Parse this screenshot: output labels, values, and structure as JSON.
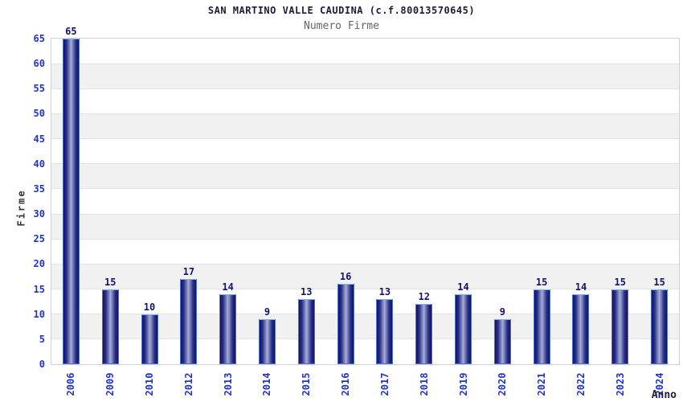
{
  "chart_data": {
    "type": "bar",
    "title": "SAN MARTINO VALLE CAUDINA (c.f.80013570645)",
    "subtitle": "Numero Firme",
    "xlabel": "Anno",
    "ylabel": "Firme",
    "categories": [
      "2006",
      "2009",
      "2010",
      "2012",
      "2013",
      "2014",
      "2015",
      "2016",
      "2017",
      "2018",
      "2019",
      "2020",
      "2021",
      "2022",
      "2023",
      "2024"
    ],
    "values": [
      65,
      15,
      10,
      17,
      14,
      9,
      13,
      16,
      13,
      12,
      14,
      9,
      15,
      14,
      15,
      15
    ],
    "ylim": [
      0,
      65
    ],
    "ytick_step": 5,
    "yticks": [
      0,
      5,
      10,
      15,
      20,
      25,
      30,
      35,
      40,
      45,
      50,
      55,
      60,
      65
    ],
    "grid": true,
    "legend": "none",
    "band_fill_ranges": "alternating 5-unit stripes starting gray at 5-10",
    "colors": {
      "bar_edge": "#121264",
      "bar_center": "#a6aeda",
      "bar_border": "#4a72d8",
      "bar_border_top": "#7fb2e5",
      "axis_tick_label": "#2233cc",
      "value_label": "#14146e",
      "title": "#1c1c3a",
      "subtitle": "#666666",
      "band": "#f1f1f1",
      "gridline": "#e3e3e3",
      "plot_border": "#d2d2d2",
      "background": "#ffffff"
    }
  }
}
